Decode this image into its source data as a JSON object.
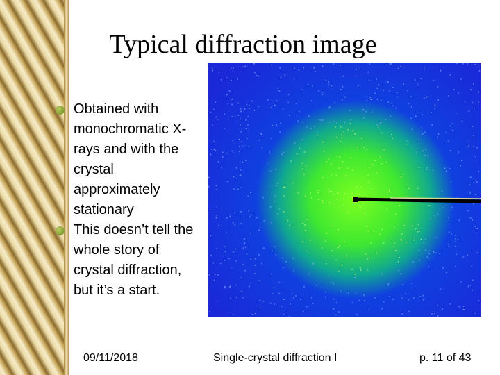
{
  "title": "Typical diffraction image",
  "bullets": [
    "Obtained with monochromatic X-rays and with the crystal approximately stationary",
    "This doesn’t tell the whole story of crystal diffraction, but it’s a start."
  ],
  "footer": {
    "date": "09/11/2018",
    "center": "Single-crystal diffraction I",
    "page": "p. 11 of 43"
  }
}
